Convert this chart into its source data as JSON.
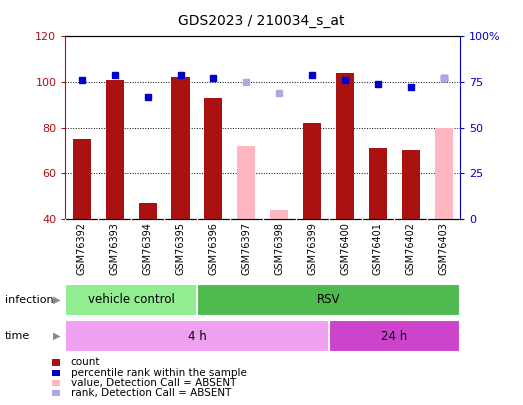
{
  "title": "GDS2023 / 210034_s_at",
  "samples": [
    "GSM76392",
    "GSM76393",
    "GSM76394",
    "GSM76395",
    "GSM76396",
    "GSM76397",
    "GSM76398",
    "GSM76399",
    "GSM76400",
    "GSM76401",
    "GSM76402",
    "GSM76403"
  ],
  "count_values": [
    75,
    101,
    47,
    102,
    93,
    null,
    null,
    82,
    104,
    71,
    70,
    null
  ],
  "rank_values": [
    76,
    79,
    67,
    79,
    77,
    null,
    null,
    79,
    76,
    74,
    72,
    77
  ],
  "absent_count_values": [
    null,
    null,
    null,
    null,
    null,
    72,
    44,
    null,
    null,
    null,
    null,
    80
  ],
  "absent_rank_values": [
    null,
    null,
    null,
    null,
    null,
    75,
    69,
    null,
    null,
    null,
    null,
    77
  ],
  "ylim_left": [
    40,
    120
  ],
  "ylim_right": [
    0,
    100
  ],
  "yticks_left": [
    40,
    60,
    80,
    100,
    120
  ],
  "yticks_right": [
    0,
    25,
    50,
    75,
    100
  ],
  "ytick_labels_right": [
    "0",
    "25",
    "50",
    "75",
    "100%"
  ],
  "infection_groups": [
    {
      "label": "vehicle control",
      "start": 0,
      "end": 4,
      "color": "#90ee90"
    },
    {
      "label": "RSV",
      "start": 4,
      "end": 12,
      "color": "#4dbb4d"
    }
  ],
  "time_groups": [
    {
      "label": "4 h",
      "start": 0,
      "end": 8,
      "color": "#f0a0f0"
    },
    {
      "label": "24 h",
      "start": 8,
      "end": 12,
      "color": "#cc44cc"
    }
  ],
  "count_color": "#aa1111",
  "rank_color": "#0000cc",
  "absent_count_color": "#ffb6c1",
  "absent_rank_color": "#aaaadd",
  "bg_color": "#c8c8c8",
  "legend_items": [
    {
      "color": "#aa1111",
      "label": "count"
    },
    {
      "color": "#0000cc",
      "label": "percentile rank within the sample"
    },
    {
      "color": "#ffb6c1",
      "label": "value, Detection Call = ABSENT"
    },
    {
      "color": "#aaaadd",
      "label": "rank, Detection Call = ABSENT"
    }
  ]
}
